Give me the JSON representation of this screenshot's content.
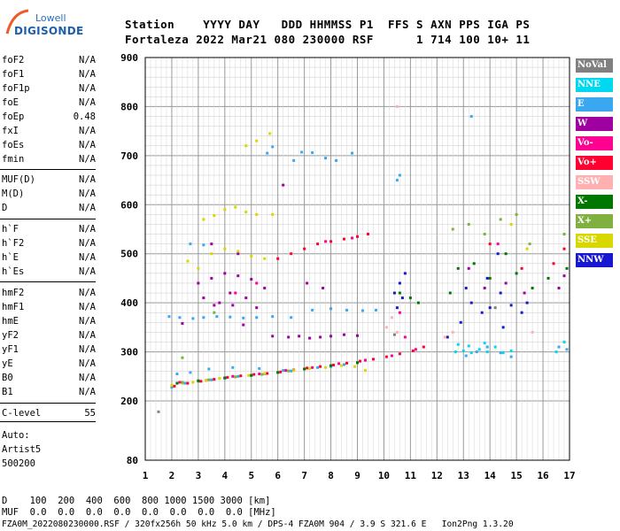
{
  "header": {
    "line1": "Station    YYYY DAY   DDD HHMMSS P1  FFS S AXN PPS IGA PS",
    "line2": "Fortaleza 2022 Mar21 080 230000 RSF      1 714 100 10+ 11"
  },
  "logo": {
    "top": "Lowell",
    "bottom": "DIGISONDE"
  },
  "params_group1": [
    {
      "name": "foF2",
      "value": "N/A"
    },
    {
      "name": "foF1",
      "value": "N/A"
    },
    {
      "name": "foF1p",
      "value": "N/A"
    },
    {
      "name": "foE",
      "value": "N/A"
    },
    {
      "name": "foEp",
      "value": "0.48"
    },
    {
      "name": "fxI",
      "value": "N/A"
    },
    {
      "name": "foEs",
      "value": "N/A"
    },
    {
      "name": "fmin",
      "value": "N/A"
    }
  ],
  "params_group2": [
    {
      "name": "MUF(D)",
      "value": "N/A"
    },
    {
      "name": "M(D)",
      "value": "N/A"
    },
    {
      "name": "D",
      "value": "N/A"
    }
  ],
  "params_group3": [
    {
      "name": "h`F",
      "value": "N/A"
    },
    {
      "name": "h`F2",
      "value": "N/A"
    },
    {
      "name": "h`E",
      "value": "N/A"
    },
    {
      "name": "h`Es",
      "value": "N/A"
    }
  ],
  "params_group4": [
    {
      "name": "hmF2",
      "value": "N/A"
    },
    {
      "name": "hmF1",
      "value": "N/A"
    },
    {
      "name": "hmE",
      "value": "N/A"
    },
    {
      "name": "yF2",
      "value": "N/A"
    },
    {
      "name": "yF1",
      "value": "N/A"
    },
    {
      "name": "yE",
      "value": "N/A"
    },
    {
      "name": "B0",
      "value": "N/A"
    },
    {
      "name": "B1",
      "value": "N/A"
    }
  ],
  "clevel": {
    "name": "C-level",
    "value": "55"
  },
  "auto": [
    "Auto:",
    "Artist5",
    "500200"
  ],
  "legend": [
    {
      "label": "NoVal",
      "color": "#808080"
    },
    {
      "label": "NNE",
      "color": "#00d8f0"
    },
    {
      "label": "E",
      "color": "#3aa8f0"
    },
    {
      "label": "W",
      "color": "#a000a0"
    },
    {
      "label": "Vo-",
      "color": "#ff0090"
    },
    {
      "label": "Vo+",
      "color": "#ff0030"
    },
    {
      "label": "SSW",
      "color": "#ffb0b0"
    },
    {
      "label": "X-",
      "color": "#007800"
    },
    {
      "label": "X+",
      "color": "#80b040"
    },
    {
      "label": "SSE",
      "color": "#d8d800"
    },
    {
      "label": "NNW",
      "color": "#1818d0"
    }
  ],
  "footer": {
    "d_line": "D    100  200  400  600  800 1000 1500 3000 [km]",
    "muf_line": "MUF  0.0  0.0  0.0  0.0  0.0  0.0  0.0  0.0 [MHz]",
    "file_line": "FZA0M_2022080230000.RSF / 320fx256h 50 kHz 5.0 km / DPS-4 FZA0M 904 / 3.9 S 321.6 E   Ion2Png 1.3.20"
  },
  "chart_data": {
    "type": "scatter",
    "title": "",
    "xlabel": "",
    "ylabel": "",
    "xlim": [
      1,
      17
    ],
    "ylim": [
      80,
      900
    ],
    "x_ticks": [
      1,
      2,
      3,
      4,
      5,
      6,
      7,
      8,
      9,
      10,
      11,
      12,
      13,
      14,
      15,
      16,
      17
    ],
    "y_ticks": [
      80,
      200,
      300,
      400,
      500,
      600,
      700,
      800,
      900
    ],
    "grid": true,
    "series": [
      {
        "name": "E",
        "color": "#3aa8f0",
        "points": [
          [
            1.9,
            372
          ],
          [
            2.3,
            370
          ],
          [
            2.8,
            368
          ],
          [
            3.2,
            370
          ],
          [
            3.7,
            372
          ],
          [
            4.2,
            371
          ],
          [
            4.7,
            369
          ],
          [
            5.2,
            370
          ],
          [
            5.8,
            372
          ],
          [
            6.5,
            370
          ],
          [
            7.3,
            385
          ],
          [
            8.0,
            388
          ],
          [
            8.6,
            385
          ],
          [
            9.2,
            384
          ],
          [
            9.7,
            385
          ],
          [
            2.0,
            228
          ],
          [
            2.5,
            236
          ],
          [
            3.0,
            240
          ],
          [
            3.5,
            243
          ],
          [
            4.0,
            246
          ],
          [
            4.5,
            250
          ],
          [
            5.0,
            252
          ],
          [
            5.5,
            255
          ],
          [
            6.0,
            258
          ],
          [
            6.5,
            261
          ],
          [
            7.0,
            265
          ],
          [
            7.5,
            268
          ],
          [
            8.0,
            270
          ],
          [
            8.5,
            274
          ],
          [
            9.0,
            278
          ],
          [
            3.4,
            265
          ],
          [
            4.3,
            268
          ],
          [
            5.3,
            266
          ],
          [
            6.2,
            262
          ],
          [
            2.2,
            255
          ],
          [
            2.7,
            258
          ],
          [
            5.6,
            705
          ],
          [
            5.8,
            718
          ],
          [
            6.9,
            707
          ],
          [
            7.3,
            706
          ],
          [
            8.8,
            705
          ],
          [
            6.6,
            690
          ],
          [
            7.8,
            695
          ],
          [
            8.2,
            690
          ],
          [
            2.7,
            520
          ],
          [
            3.2,
            518
          ],
          [
            10.5,
            650
          ],
          [
            10.6,
            660
          ],
          [
            13.3,
            780
          ],
          [
            13.1,
            292
          ],
          [
            13.5,
            300
          ],
          [
            13.9,
            310
          ],
          [
            14.4,
            298
          ],
          [
            14.8,
            290
          ],
          [
            16.6,
            310
          ],
          [
            16.9,
            305
          ]
        ]
      },
      {
        "name": "NNE",
        "color": "#00d8f0",
        "points": [
          [
            12.7,
            300
          ],
          [
            13.0,
            302
          ],
          [
            13.3,
            298
          ],
          [
            13.6,
            305
          ],
          [
            13.9,
            300
          ],
          [
            14.2,
            310
          ],
          [
            14.5,
            298
          ],
          [
            14.8,
            302
          ],
          [
            13.2,
            312
          ],
          [
            13.8,
            318
          ],
          [
            12.8,
            315
          ],
          [
            16.5,
            300
          ],
          [
            16.8,
            320
          ]
        ]
      },
      {
        "name": "W",
        "color": "#a000a0",
        "points": [
          [
            3.0,
            440
          ],
          [
            3.5,
            450
          ],
          [
            4.0,
            460
          ],
          [
            4.5,
            455
          ],
          [
            5.0,
            448
          ],
          [
            5.5,
            430
          ],
          [
            3.2,
            410
          ],
          [
            3.8,
            400
          ],
          [
            4.2,
            420
          ],
          [
            4.8,
            410
          ],
          [
            5.2,
            390
          ],
          [
            6.4,
            330
          ],
          [
            6.8,
            332
          ],
          [
            7.2,
            328
          ],
          [
            7.6,
            330
          ],
          [
            8.0,
            332
          ],
          [
            8.5,
            335
          ],
          [
            9.0,
            333
          ],
          [
            5.8,
            332
          ],
          [
            4.3,
            395
          ],
          [
            3.5,
            520
          ],
          [
            4.5,
            500
          ],
          [
            6.2,
            640
          ],
          [
            3.6,
            395
          ],
          [
            7.1,
            440
          ],
          [
            7.7,
            430
          ],
          [
            2.4,
            358
          ],
          [
            4.7,
            355
          ],
          [
            13.8,
            430
          ],
          [
            14.6,
            440
          ],
          [
            15.3,
            420
          ],
          [
            16.6,
            430
          ],
          [
            16.8,
            455
          ],
          [
            13.2,
            470
          ]
        ]
      },
      {
        "name": "Vo+",
        "color": "#ff0030",
        "points": [
          [
            2.1,
            230
          ],
          [
            2.6,
            236
          ],
          [
            3.1,
            240
          ],
          [
            3.6,
            244
          ],
          [
            4.1,
            248
          ],
          [
            4.6,
            251
          ],
          [
            5.1,
            254
          ],
          [
            5.6,
            256
          ],
          [
            6.1,
            259
          ],
          [
            6.6,
            263
          ],
          [
            7.1,
            267
          ],
          [
            7.6,
            270
          ],
          [
            8.1,
            273
          ],
          [
            8.6,
            277
          ],
          [
            9.1,
            281
          ],
          [
            9.6,
            285
          ],
          [
            10.1,
            290
          ],
          [
            10.6,
            296
          ],
          [
            11.1,
            302
          ],
          [
            11.5,
            310
          ],
          [
            6.0,
            490
          ],
          [
            6.5,
            500
          ],
          [
            7.0,
            510
          ],
          [
            7.5,
            520
          ],
          [
            8.0,
            525
          ],
          [
            8.5,
            530
          ],
          [
            9.0,
            535
          ],
          [
            9.4,
            540
          ],
          [
            16.4,
            480
          ],
          [
            16.8,
            510
          ],
          [
            14.0,
            520
          ],
          [
            15.2,
            470
          ]
        ]
      },
      {
        "name": "Vo-",
        "color": "#ff0090",
        "points": [
          [
            2.3,
            238
          ],
          [
            3.3,
            242
          ],
          [
            4.3,
            250
          ],
          [
            5.3,
            255
          ],
          [
            6.3,
            262
          ],
          [
            7.3,
            268
          ],
          [
            8.3,
            276
          ],
          [
            9.3,
            283
          ],
          [
            10.3,
            292
          ],
          [
            11.2,
            305
          ],
          [
            7.8,
            525
          ],
          [
            8.8,
            532
          ],
          [
            5.2,
            440
          ],
          [
            4.4,
            420
          ],
          [
            14.3,
            520
          ],
          [
            10.6,
            380
          ],
          [
            10.8,
            330
          ]
        ]
      },
      {
        "name": "SSE",
        "color": "#d8d800",
        "points": [
          [
            2.0,
            232
          ],
          [
            2.4,
            236
          ],
          [
            2.8,
            238
          ],
          [
            3.3,
            242
          ],
          [
            3.8,
            246
          ],
          [
            4.4,
            249
          ],
          [
            4.9,
            252
          ],
          [
            5.5,
            256
          ],
          [
            6.0,
            258
          ],
          [
            6.6,
            262
          ],
          [
            7.2,
            266
          ],
          [
            7.8,
            268
          ],
          [
            8.4,
            272
          ],
          [
            8.9,
            270
          ],
          [
            9.3,
            262
          ],
          [
            3.2,
            570
          ],
          [
            3.6,
            578
          ],
          [
            4.0,
            590
          ],
          [
            4.4,
            595
          ],
          [
            4.8,
            585
          ],
          [
            5.2,
            580
          ],
          [
            3.5,
            500
          ],
          [
            4.0,
            510
          ],
          [
            4.5,
            505
          ],
          [
            5.0,
            495
          ],
          [
            5.5,
            490
          ],
          [
            4.8,
            720
          ],
          [
            5.2,
            730
          ],
          [
            5.7,
            745
          ],
          [
            2.6,
            485
          ],
          [
            3.0,
            470
          ],
          [
            5.8,
            580
          ],
          [
            14.8,
            560
          ],
          [
            15.4,
            510
          ]
        ]
      },
      {
        "name": "X-",
        "color": "#007800",
        "points": [
          [
            2.2,
            236
          ],
          [
            3.0,
            241
          ],
          [
            4.0,
            247
          ],
          [
            5.0,
            252
          ],
          [
            6.0,
            258
          ],
          [
            7.0,
            265
          ],
          [
            8.0,
            272
          ],
          [
            9.0,
            278
          ],
          [
            10.6,
            420
          ],
          [
            11.0,
            410
          ],
          [
            11.3,
            400
          ],
          [
            12.5,
            420
          ],
          [
            12.8,
            470
          ],
          [
            13.4,
            480
          ],
          [
            14.0,
            450
          ],
          [
            14.6,
            500
          ],
          [
            15.0,
            460
          ],
          [
            15.6,
            430
          ],
          [
            16.2,
            450
          ],
          [
            16.9,
            470
          ]
        ]
      },
      {
        "name": "X+",
        "color": "#80b040",
        "points": [
          [
            2.4,
            238
          ],
          [
            3.4,
            243
          ],
          [
            4.4,
            249
          ],
          [
            5.4,
            254
          ],
          [
            6.4,
            261
          ],
          [
            12.6,
            550
          ],
          [
            13.2,
            560
          ],
          [
            13.8,
            540
          ],
          [
            14.4,
            570
          ],
          [
            15.0,
            580
          ],
          [
            15.5,
            520
          ],
          [
            16.8,
            540
          ],
          [
            3.6,
            380
          ],
          [
            2.4,
            288
          ]
        ]
      },
      {
        "name": "NNW",
        "color": "#1818d0",
        "points": [
          [
            10.4,
            420
          ],
          [
            10.6,
            440
          ],
          [
            10.7,
            410
          ],
          [
            10.5,
            390
          ],
          [
            10.8,
            460
          ],
          [
            12.4,
            330
          ],
          [
            12.9,
            360
          ],
          [
            13.3,
            400
          ],
          [
            13.7,
            380
          ],
          [
            14.0,
            390
          ],
          [
            14.4,
            420
          ],
          [
            14.8,
            395
          ],
          [
            15.2,
            380
          ],
          [
            13.9,
            450
          ],
          [
            14.3,
            500
          ],
          [
            13.1,
            430
          ],
          [
            15.4,
            400
          ],
          [
            14.5,
            350
          ]
        ]
      },
      {
        "name": "SSW",
        "color": "#ffb0b0",
        "points": [
          [
            10.1,
            350
          ],
          [
            10.3,
            370
          ],
          [
            10.5,
            340
          ],
          [
            12.3,
            330
          ],
          [
            12.6,
            340
          ],
          [
            15.6,
            340
          ],
          [
            10.5,
            800
          ]
        ]
      },
      {
        "name": "NoVal",
        "color": "#808080",
        "points": [
          [
            1.5,
            178
          ],
          [
            14.2,
            390
          ],
          [
            10.4,
            335
          ]
        ]
      }
    ]
  }
}
